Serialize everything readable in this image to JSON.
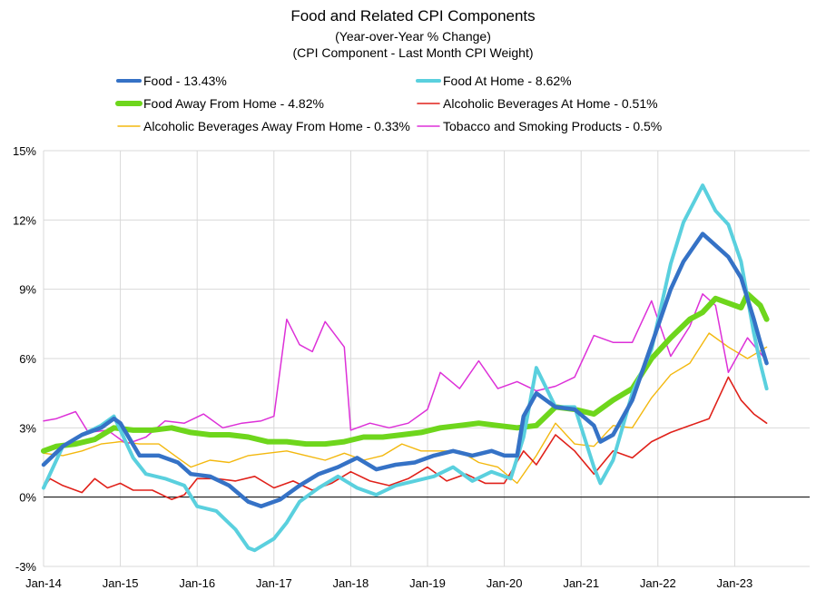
{
  "chart_data": {
    "type": "line",
    "title": "Food and Related CPI Components",
    "subtitle1": "(Year-over-Year % Change)",
    "subtitle2": "(CPI Component - Last Month CPI Weight)",
    "xlabel": "",
    "ylabel": "",
    "ylim": [
      -3,
      15
    ],
    "yticks": [
      -3,
      0,
      3,
      6,
      9,
      12,
      15
    ],
    "ytick_labels": [
      "-3%",
      "0%",
      "3%",
      "6%",
      "9%",
      "12%",
      "15%"
    ],
    "xlim": [
      "2014-01",
      "2023-06"
    ],
    "xticks": [
      "2014-01",
      "2015-01",
      "2016-01",
      "2017-01",
      "2018-01",
      "2019-01",
      "2020-01",
      "2021-01",
      "2022-01",
      "2023-01"
    ],
    "xtick_labels": [
      "Jan-14",
      "Jan-15",
      "Jan-16",
      "Jan-17",
      "Jan-18",
      "Jan-19",
      "Jan-20",
      "Jan-21",
      "Jan-22",
      "Jan-23"
    ],
    "grid": "vertical and horizontal",
    "legend_position": "top",
    "series": [
      {
        "name": "Food - 13.43%",
        "color": "#3572c6",
        "points": [
          [
            "2014-01",
            1.4
          ],
          [
            "2014-04",
            2.2
          ],
          [
            "2014-07",
            2.7
          ],
          [
            "2014-10",
            3.0
          ],
          [
            "2014-12",
            3.4
          ],
          [
            "2015-01",
            3.2
          ],
          [
            "2015-04",
            1.8
          ],
          [
            "2015-07",
            1.8
          ],
          [
            "2015-10",
            1.5
          ],
          [
            "2015-12",
            1.0
          ],
          [
            "2016-03",
            0.9
          ],
          [
            "2016-06",
            0.5
          ],
          [
            "2016-09",
            -0.2
          ],
          [
            "2016-11",
            -0.4
          ],
          [
            "2017-02",
            -0.1
          ],
          [
            "2017-05",
            0.5
          ],
          [
            "2017-08",
            1.0
          ],
          [
            "2017-11",
            1.3
          ],
          [
            "2018-02",
            1.7
          ],
          [
            "2018-05",
            1.2
          ],
          [
            "2018-08",
            1.4
          ],
          [
            "2018-11",
            1.5
          ],
          [
            "2019-02",
            1.8
          ],
          [
            "2019-05",
            2.0
          ],
          [
            "2019-08",
            1.8
          ],
          [
            "2019-11",
            2.0
          ],
          [
            "2020-01",
            1.8
          ],
          [
            "2020-03",
            1.8
          ],
          [
            "2020-04",
            3.5
          ],
          [
            "2020-06",
            4.5
          ],
          [
            "2020-09",
            3.9
          ],
          [
            "2020-12",
            3.8
          ],
          [
            "2021-03",
            3.1
          ],
          [
            "2021-04",
            2.4
          ],
          [
            "2021-06",
            2.7
          ],
          [
            "2021-09",
            4.2
          ],
          [
            "2021-12",
            6.6
          ],
          [
            "2022-03",
            9.0
          ],
          [
            "2022-05",
            10.2
          ],
          [
            "2022-08",
            11.4
          ],
          [
            "2022-10",
            10.9
          ],
          [
            "2022-12",
            10.4
          ],
          [
            "2023-02",
            9.5
          ],
          [
            "2023-04",
            7.7
          ],
          [
            "2023-05",
            6.7
          ],
          [
            "2023-06",
            5.8
          ]
        ]
      },
      {
        "name": "Food At Home - 8.62%",
        "color": "#5ad0de",
        "points": [
          [
            "2014-01",
            0.4
          ],
          [
            "2014-04",
            2.2
          ],
          [
            "2014-07",
            2.7
          ],
          [
            "2014-10",
            3.1
          ],
          [
            "2014-12",
            3.5
          ],
          [
            "2015-01",
            2.9
          ],
          [
            "2015-03",
            1.7
          ],
          [
            "2015-05",
            1.0
          ],
          [
            "2015-08",
            0.8
          ],
          [
            "2015-11",
            0.5
          ],
          [
            "2016-01",
            -0.4
          ],
          [
            "2016-04",
            -0.6
          ],
          [
            "2016-07",
            -1.4
          ],
          [
            "2016-09",
            -2.2
          ],
          [
            "2016-10",
            -2.3
          ],
          [
            "2017-01",
            -1.8
          ],
          [
            "2017-03",
            -1.1
          ],
          [
            "2017-05",
            -0.2
          ],
          [
            "2017-08",
            0.4
          ],
          [
            "2017-11",
            0.9
          ],
          [
            "2018-02",
            0.4
          ],
          [
            "2018-05",
            0.1
          ],
          [
            "2018-08",
            0.5
          ],
          [
            "2018-11",
            0.7
          ],
          [
            "2019-02",
            0.9
          ],
          [
            "2019-05",
            1.3
          ],
          [
            "2019-08",
            0.7
          ],
          [
            "2019-11",
            1.1
          ],
          [
            "2020-02",
            0.8
          ],
          [
            "2020-04",
            2.6
          ],
          [
            "2020-06",
            5.6
          ],
          [
            "2020-09",
            3.9
          ],
          [
            "2020-12",
            3.9
          ],
          [
            "2021-03",
            1.3
          ],
          [
            "2021-04",
            0.6
          ],
          [
            "2021-06",
            1.6
          ],
          [
            "2021-09",
            4.5
          ],
          [
            "2021-12",
            6.4
          ],
          [
            "2022-03",
            10.1
          ],
          [
            "2022-05",
            11.9
          ],
          [
            "2022-08",
            13.5
          ],
          [
            "2022-10",
            12.4
          ],
          [
            "2022-12",
            11.8
          ],
          [
            "2023-02",
            10.2
          ],
          [
            "2023-04",
            7.1
          ],
          [
            "2023-05",
            5.8
          ],
          [
            "2023-06",
            4.7
          ]
        ]
      },
      {
        "name": "Food Away From Home - 4.82%",
        "color": "#6ed61c",
        "points": [
          [
            "2014-01",
            2.0
          ],
          [
            "2014-03",
            2.2
          ],
          [
            "2014-06",
            2.3
          ],
          [
            "2014-09",
            2.5
          ],
          [
            "2014-12",
            3.0
          ],
          [
            "2015-03",
            2.9
          ],
          [
            "2015-06",
            2.9
          ],
          [
            "2015-09",
            3.0
          ],
          [
            "2015-12",
            2.8
          ],
          [
            "2016-03",
            2.7
          ],
          [
            "2016-06",
            2.7
          ],
          [
            "2016-09",
            2.6
          ],
          [
            "2016-12",
            2.4
          ],
          [
            "2017-03",
            2.4
          ],
          [
            "2017-06",
            2.3
          ],
          [
            "2017-09",
            2.3
          ],
          [
            "2017-12",
            2.4
          ],
          [
            "2018-03",
            2.6
          ],
          [
            "2018-06",
            2.6
          ],
          [
            "2018-09",
            2.7
          ],
          [
            "2018-12",
            2.8
          ],
          [
            "2019-03",
            3.0
          ],
          [
            "2019-06",
            3.1
          ],
          [
            "2019-09",
            3.2
          ],
          [
            "2019-12",
            3.1
          ],
          [
            "2020-03",
            3.0
          ],
          [
            "2020-06",
            3.1
          ],
          [
            "2020-09",
            3.9
          ],
          [
            "2020-12",
            3.8
          ],
          [
            "2021-03",
            3.6
          ],
          [
            "2021-06",
            4.2
          ],
          [
            "2021-09",
            4.7
          ],
          [
            "2021-12",
            6.0
          ],
          [
            "2022-03",
            6.9
          ],
          [
            "2022-06",
            7.7
          ],
          [
            "2022-08",
            8.0
          ],
          [
            "2022-10",
            8.6
          ],
          [
            "2022-12",
            8.4
          ],
          [
            "2023-02",
            8.2
          ],
          [
            "2023-03",
            8.8
          ],
          [
            "2023-05",
            8.3
          ],
          [
            "2023-06",
            7.7
          ]
        ]
      },
      {
        "name": "Alcoholic Beverages At Home - 0.51%",
        "color": "#e0211a",
        "points": [
          [
            "2014-01",
            0.4
          ],
          [
            "2014-02",
            0.8
          ],
          [
            "2014-04",
            0.5
          ],
          [
            "2014-07",
            0.2
          ],
          [
            "2014-09",
            0.8
          ],
          [
            "2014-11",
            0.4
          ],
          [
            "2015-01",
            0.6
          ],
          [
            "2015-03",
            0.3
          ],
          [
            "2015-06",
            0.3
          ],
          [
            "2015-09",
            -0.1
          ],
          [
            "2015-11",
            0.1
          ],
          [
            "2016-01",
            0.8
          ],
          [
            "2016-04",
            0.8
          ],
          [
            "2016-07",
            0.7
          ],
          [
            "2016-10",
            0.9
          ],
          [
            "2017-01",
            0.4
          ],
          [
            "2017-04",
            0.7
          ],
          [
            "2017-07",
            0.3
          ],
          [
            "2017-10",
            0.6
          ],
          [
            "2018-01",
            1.1
          ],
          [
            "2018-04",
            0.7
          ],
          [
            "2018-07",
            0.5
          ],
          [
            "2018-10",
            0.8
          ],
          [
            "2019-01",
            1.3
          ],
          [
            "2019-04",
            0.7
          ],
          [
            "2019-07",
            1.0
          ],
          [
            "2019-10",
            0.6
          ],
          [
            "2020-01",
            0.6
          ],
          [
            "2020-04",
            2.0
          ],
          [
            "2020-06",
            1.4
          ],
          [
            "2020-09",
            2.7
          ],
          [
            "2020-12",
            2.0
          ],
          [
            "2021-03",
            1.0
          ],
          [
            "2021-06",
            2.0
          ],
          [
            "2021-09",
            1.7
          ],
          [
            "2021-12",
            2.4
          ],
          [
            "2022-03",
            2.8
          ],
          [
            "2022-06",
            3.1
          ],
          [
            "2022-09",
            3.4
          ],
          [
            "2022-12",
            5.2
          ],
          [
            "2023-02",
            4.2
          ],
          [
            "2023-04",
            3.6
          ],
          [
            "2023-06",
            3.2
          ]
        ]
      },
      {
        "name": "Alcoholic Beverages Away From Home - 0.33%",
        "color": "#f3b80e",
        "points": [
          [
            "2014-01",
            1.9
          ],
          [
            "2014-04",
            1.8
          ],
          [
            "2014-07",
            2.0
          ],
          [
            "2014-10",
            2.3
          ],
          [
            "2015-01",
            2.4
          ],
          [
            "2015-04",
            2.3
          ],
          [
            "2015-07",
            2.3
          ],
          [
            "2015-10",
            1.7
          ],
          [
            "2015-12",
            1.3
          ],
          [
            "2016-03",
            1.6
          ],
          [
            "2016-06",
            1.5
          ],
          [
            "2016-09",
            1.8
          ],
          [
            "2016-12",
            1.9
          ],
          [
            "2017-03",
            2.0
          ],
          [
            "2017-06",
            1.8
          ],
          [
            "2017-09",
            1.6
          ],
          [
            "2017-12",
            1.9
          ],
          [
            "2018-03",
            1.6
          ],
          [
            "2018-06",
            1.8
          ],
          [
            "2018-09",
            2.3
          ],
          [
            "2018-12",
            2.0
          ],
          [
            "2019-03",
            2.0
          ],
          [
            "2019-06",
            2.0
          ],
          [
            "2019-09",
            1.5
          ],
          [
            "2019-12",
            1.3
          ],
          [
            "2020-03",
            0.6
          ],
          [
            "2020-06",
            1.8
          ],
          [
            "2020-09",
            3.2
          ],
          [
            "2020-12",
            2.3
          ],
          [
            "2021-03",
            2.2
          ],
          [
            "2021-06",
            3.1
          ],
          [
            "2021-09",
            3.0
          ],
          [
            "2021-12",
            4.3
          ],
          [
            "2022-03",
            5.3
          ],
          [
            "2022-06",
            5.8
          ],
          [
            "2022-09",
            7.1
          ],
          [
            "2022-12",
            6.5
          ],
          [
            "2023-03",
            6.0
          ],
          [
            "2023-06",
            6.5
          ]
        ]
      },
      {
        "name": "Tobacco and Smoking Products - 0.5%",
        "color": "#dd30d8",
        "points": [
          [
            "2014-01",
            3.3
          ],
          [
            "2014-03",
            3.4
          ],
          [
            "2014-06",
            3.7
          ],
          [
            "2014-08",
            2.8
          ],
          [
            "2014-11",
            2.9
          ],
          [
            "2015-02",
            2.3
          ],
          [
            "2015-05",
            2.6
          ],
          [
            "2015-08",
            3.3
          ],
          [
            "2015-11",
            3.2
          ],
          [
            "2016-02",
            3.6
          ],
          [
            "2016-05",
            3.0
          ],
          [
            "2016-08",
            3.2
          ],
          [
            "2016-11",
            3.3
          ],
          [
            "2017-01",
            3.5
          ],
          [
            "2017-03",
            7.7
          ],
          [
            "2017-05",
            6.6
          ],
          [
            "2017-07",
            6.3
          ],
          [
            "2017-09",
            7.6
          ],
          [
            "2017-12",
            6.5
          ],
          [
            "2018-01",
            2.9
          ],
          [
            "2018-04",
            3.2
          ],
          [
            "2018-07",
            3.0
          ],
          [
            "2018-10",
            3.2
          ],
          [
            "2019-01",
            3.8
          ],
          [
            "2019-03",
            5.4
          ],
          [
            "2019-06",
            4.7
          ],
          [
            "2019-09",
            5.9
          ],
          [
            "2019-12",
            4.7
          ],
          [
            "2020-03",
            5.0
          ],
          [
            "2020-06",
            4.6
          ],
          [
            "2020-09",
            4.8
          ],
          [
            "2020-12",
            5.2
          ],
          [
            "2021-03",
            7.0
          ],
          [
            "2021-06",
            6.7
          ],
          [
            "2021-09",
            6.7
          ],
          [
            "2021-12",
            8.5
          ],
          [
            "2022-03",
            6.1
          ],
          [
            "2022-06",
            7.4
          ],
          [
            "2022-08",
            8.8
          ],
          [
            "2022-10",
            8.3
          ],
          [
            "2022-12",
            5.4
          ],
          [
            "2023-03",
            6.9
          ],
          [
            "2023-06",
            5.9
          ]
        ]
      }
    ]
  },
  "legend": [
    {
      "label": "Food - 13.43%",
      "color": "#3572c6"
    },
    {
      "label": "Food At Home - 8.62%",
      "color": "#5ad0de"
    },
    {
      "label": "Food Away From Home - 4.82%",
      "color": "#6ed61c"
    },
    {
      "label": "Alcoholic Beverages At Home - 0.51%",
      "color": "#e0211a"
    },
    {
      "label": "Alcoholic Beverages Away From Home - 0.33%",
      "color": "#f3b80e"
    },
    {
      "label": "Tobacco and Smoking Products - 0.5%",
      "color": "#dd30d8"
    }
  ]
}
